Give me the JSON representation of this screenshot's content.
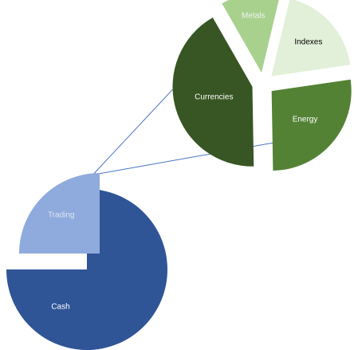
{
  "chart_data": [
    {
      "type": "pie",
      "title": "",
      "slices": [
        {
          "label": "Cash",
          "value": 75,
          "color": "#2f5597",
          "label_color": "#ffffff"
        },
        {
          "label": "Trading",
          "value": 25,
          "color": "#8faadc",
          "label_color": "#dce6f2"
        }
      ]
    },
    {
      "type": "pie",
      "title": "",
      "slices": [
        {
          "label": "Currencies",
          "value": 42,
          "color": "#375623",
          "label_color": "#ffffff"
        },
        {
          "label": "Metals",
          "value": 12,
          "color": "#a9d18e",
          "label_color": "#f2f2f2"
        },
        {
          "label": "Indexes",
          "value": 19,
          "color": "#e2f0d9",
          "label_color": "#000000"
        },
        {
          "label": "Energy",
          "value": 27,
          "color": "#548235",
          "label_color": "#ffffff"
        }
      ]
    }
  ],
  "connector_color": "#4472c4"
}
